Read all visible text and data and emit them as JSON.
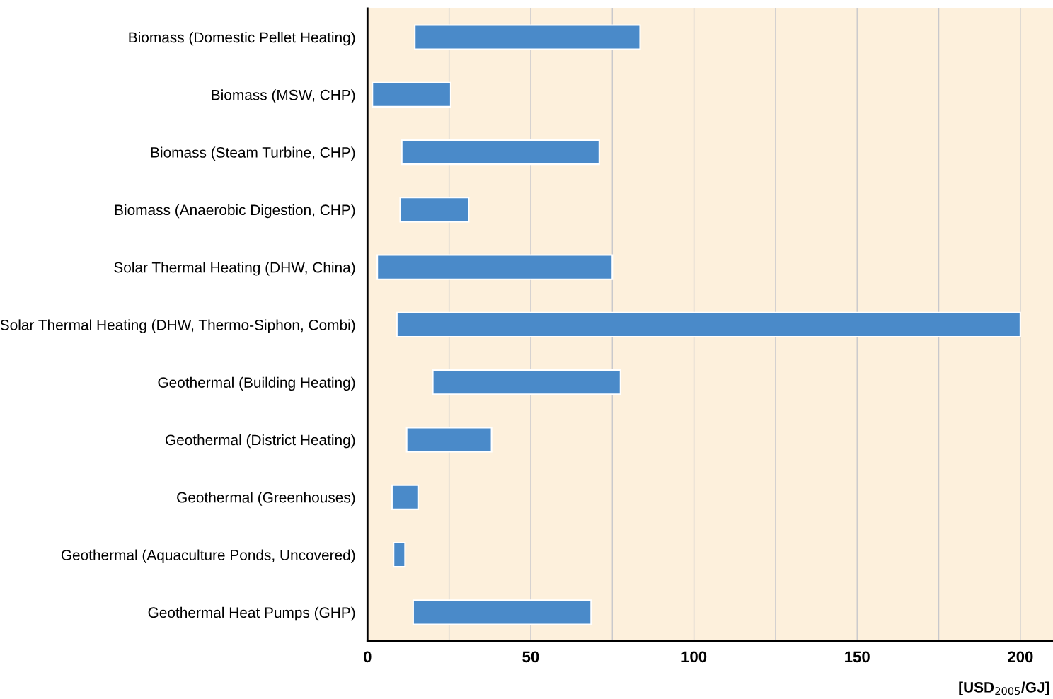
{
  "chart_data": {
    "type": "bar",
    "orientation": "horizontal",
    "categories": [
      "Biomass (Domestic Pellet Heating)",
      "Biomass (MSW, CHP)",
      "Biomass (Steam Turbine, CHP)",
      "Biomass (Anaerobic Digestion, CHP)",
      "Solar Thermal Heating (DHW, China)",
      "Solar Thermal Heating (DHW, Thermo-Siphon, Combi)",
      "Geothermal (Building Heating)",
      "Geothermal (District Heating)",
      "Geothermal (Greenhouses)",
      "Geothermal (Aquaculture Ponds, Uncovered)",
      "Geothermal Heat Pumps (GHP)"
    ],
    "base": [
      14.5,
      1.5,
      10.5,
      10,
      3,
      9,
      20,
      12,
      7.5,
      8,
      14
    ],
    "values": [
      69,
      24,
      60.5,
      21,
      72,
      191,
      57.5,
      26,
      8,
      3.5,
      54.5
    ],
    "color": "#4a8ac9",
    "xlim": [
      0,
      210
    ],
    "xticks": [
      0,
      {
        "value": 25,
        "label": null
      },
      50,
      {
        "value": 75,
        "label": null
      },
      100,
      {
        "value": 125,
        "label": null
      },
      150,
      {
        "value": 175,
        "label": null
      },
      200
    ],
    "xlabel": "[USD$_{2005}$/GJ]",
    "grid": "x"
  }
}
